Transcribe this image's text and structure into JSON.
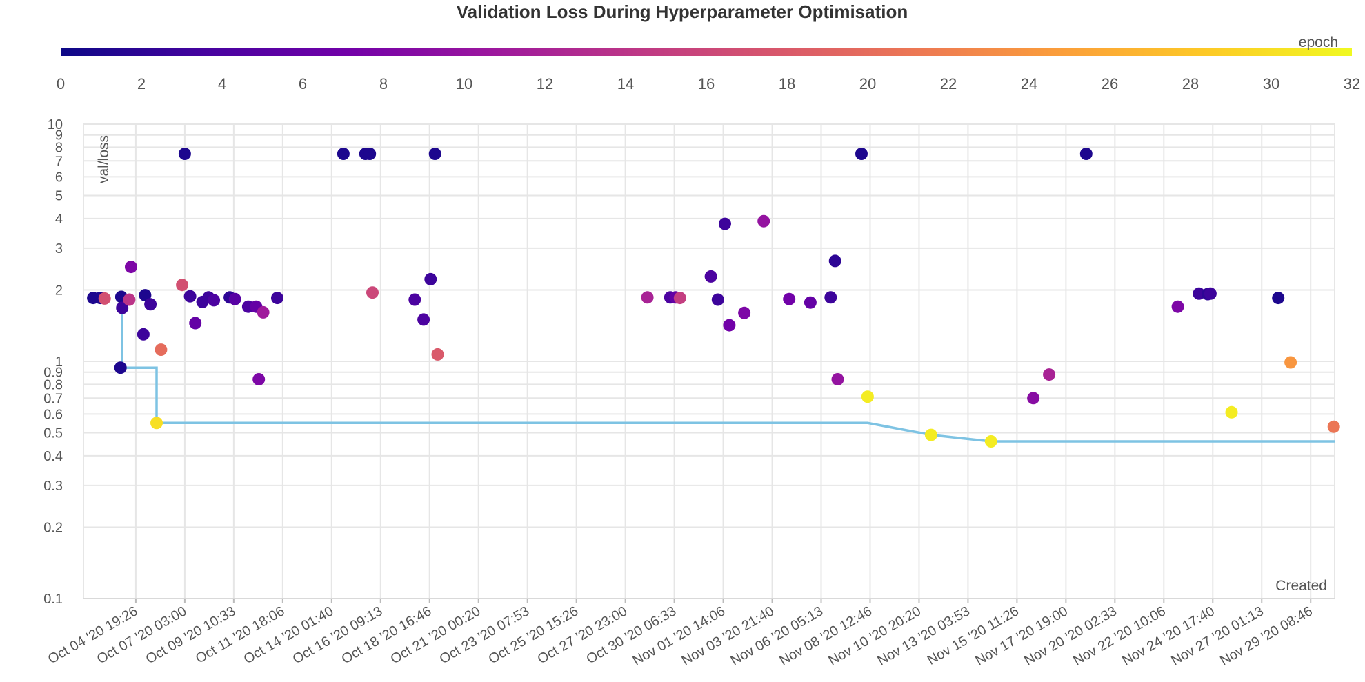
{
  "chart_data": {
    "type": "scatter",
    "title": "Validation Loss During Hyperparameter Optimisation",
    "xlabel": "Created",
    "ylabel": "val/loss",
    "y_scale": "log",
    "ylim": [
      0.1,
      10
    ],
    "y_ticks": [
      {
        "value": 0.1,
        "label": "0.1"
      },
      {
        "value": 0.2,
        "label": "0.2"
      },
      {
        "value": 0.3,
        "label": "0.3"
      },
      {
        "value": 0.4,
        "label": "0.4"
      },
      {
        "value": 0.5,
        "label": "0.5"
      },
      {
        "value": 0.6,
        "label": "0.6"
      },
      {
        "value": 0.7,
        "label": "0.7"
      },
      {
        "value": 0.8,
        "label": "0.8"
      },
      {
        "value": 0.9,
        "label": "0.9"
      },
      {
        "value": 1,
        "label": "1"
      },
      {
        "value": 2,
        "label": "2"
      },
      {
        "value": 3,
        "label": "3"
      },
      {
        "value": 4,
        "label": "4"
      },
      {
        "value": 5,
        "label": "5"
      },
      {
        "value": 6,
        "label": "6"
      },
      {
        "value": 7,
        "label": "7"
      },
      {
        "value": 8,
        "label": "8"
      },
      {
        "value": 9,
        "label": "9"
      },
      {
        "value": 10,
        "label": "10"
      }
    ],
    "xlim": [
      "2020-10-02 08:00",
      "2020-11-30 12:00"
    ],
    "x_ticks": [
      {
        "value": "2020-10-04 19:26",
        "label": "Oct 04 '20 19:26"
      },
      {
        "value": "2020-10-07 03:00",
        "label": "Oct 07 '20 03:00"
      },
      {
        "value": "2020-10-09 10:33",
        "label": "Oct 09 '20 10:33"
      },
      {
        "value": "2020-10-11 18:06",
        "label": "Oct 11 '20 18:06"
      },
      {
        "value": "2020-10-14 01:40",
        "label": "Oct 14 '20 01:40"
      },
      {
        "value": "2020-10-16 09:13",
        "label": "Oct 16 '20 09:13"
      },
      {
        "value": "2020-10-18 16:46",
        "label": "Oct 18 '20 16:46"
      },
      {
        "value": "2020-10-21 00:20",
        "label": "Oct 21 '20 00:20"
      },
      {
        "value": "2020-10-23 07:53",
        "label": "Oct 23 '20 07:53"
      },
      {
        "value": "2020-10-25 15:26",
        "label": "Oct 25 '20 15:26"
      },
      {
        "value": "2020-10-27 23:00",
        "label": "Oct 27 '20 23:00"
      },
      {
        "value": "2020-10-30 06:33",
        "label": "Oct 30 '20 06:33"
      },
      {
        "value": "2020-11-01 14:06",
        "label": "Nov 01 '20 14:06"
      },
      {
        "value": "2020-11-03 21:40",
        "label": "Nov 03 '20 21:40"
      },
      {
        "value": "2020-11-06 05:13",
        "label": "Nov 06 '20 05:13"
      },
      {
        "value": "2020-11-08 12:46",
        "label": "Nov 08 '20 12:46"
      },
      {
        "value": "2020-11-10 20:20",
        "label": "Nov 10 '20 20:20"
      },
      {
        "value": "2020-11-13 03:53",
        "label": "Nov 13 '20 03:53"
      },
      {
        "value": "2020-11-15 11:26",
        "label": "Nov 15 '20 11:26"
      },
      {
        "value": "2020-11-17 19:00",
        "label": "Nov 17 '20 19:00"
      },
      {
        "value": "2020-11-20 02:33",
        "label": "Nov 20 '20 02:33"
      },
      {
        "value": "2020-11-22 10:06",
        "label": "Nov 22 '20 10:06"
      },
      {
        "value": "2020-11-24 17:40",
        "label": "Nov 24 '20 17:40"
      },
      {
        "value": "2020-11-27 01:13",
        "label": "Nov 27 '20 01:13"
      },
      {
        "value": "2020-11-29 08:46",
        "label": "Nov 29 '20 08:46"
      }
    ],
    "grid": true,
    "colorbar": {
      "label": "epoch",
      "range": [
        0,
        32
      ],
      "ticks": [
        0,
        2,
        4,
        6,
        8,
        10,
        12,
        14,
        16,
        18,
        20,
        22,
        24,
        26,
        28,
        30,
        32
      ],
      "colorscale": [
        "#0d0887",
        "#46039f",
        "#7201a8",
        "#9c179e",
        "#bd3786",
        "#d8576b",
        "#ed7953",
        "#fb9f3a",
        "#fdca26",
        "#f0f921"
      ],
      "placement": "top"
    },
    "series": [
      {
        "type": "scatter",
        "points": [
          {
            "x": "2020-10-02 19:00",
            "y": 1.85,
            "epoch": 1
          },
          {
            "x": "2020-10-03 03:00",
            "y": 1.85,
            "epoch": 1
          },
          {
            "x": "2020-10-03 08:00",
            "y": 1.84,
            "epoch": 17
          },
          {
            "x": "2020-10-04 03:00",
            "y": 1.87,
            "epoch": 1
          },
          {
            "x": "2020-10-04 04:00",
            "y": 1.68,
            "epoch": 3
          },
          {
            "x": "2020-10-04 02:00",
            "y": 0.94,
            "epoch": 1
          },
          {
            "x": "2020-10-04 12:00",
            "y": 1.82,
            "epoch": 14
          },
          {
            "x": "2020-10-04 14:00",
            "y": 2.5,
            "epoch": 8
          },
          {
            "x": "2020-10-05 06:00",
            "y": 1.9,
            "epoch": 1
          },
          {
            "x": "2020-10-05 04:00",
            "y": 1.3,
            "epoch": 3
          },
          {
            "x": "2020-10-05 12:00",
            "y": 1.74,
            "epoch": 3
          },
          {
            "x": "2020-10-06 00:00",
            "y": 1.12,
            "epoch": 20
          },
          {
            "x": "2020-10-05 19:00",
            "y": 0.55,
            "epoch": 30
          },
          {
            "x": "2020-10-07 03:00",
            "y": 7.5,
            "epoch": 1
          },
          {
            "x": "2020-10-07 00:00",
            "y": 2.1,
            "epoch": 17
          },
          {
            "x": "2020-10-07 09:00",
            "y": 1.88,
            "epoch": 3
          },
          {
            "x": "2020-10-07 15:00",
            "y": 1.45,
            "epoch": 6
          },
          {
            "x": "2020-10-07 23:00",
            "y": 1.78,
            "epoch": 3
          },
          {
            "x": "2020-10-08 06:00",
            "y": 1.86,
            "epoch": 3
          },
          {
            "x": "2020-10-08 12:00",
            "y": 1.81,
            "epoch": 4
          },
          {
            "x": "2020-10-09 06:00",
            "y": 1.86,
            "epoch": 2
          },
          {
            "x": "2020-10-09 12:00",
            "y": 1.83,
            "epoch": 5
          },
          {
            "x": "2020-10-10 03:00",
            "y": 1.7,
            "epoch": 4
          },
          {
            "x": "2020-10-10 12:00",
            "y": 1.7,
            "epoch": 6
          },
          {
            "x": "2020-10-10 15:00",
            "y": 0.84,
            "epoch": 8
          },
          {
            "x": "2020-10-10 20:00",
            "y": 1.61,
            "epoch": 11
          },
          {
            "x": "2020-10-11 12:00",
            "y": 1.85,
            "epoch": 3
          },
          {
            "x": "2020-10-14 15:00",
            "y": 7.5,
            "epoch": 1
          },
          {
            "x": "2020-10-15 16:00",
            "y": 7.5,
            "epoch": 1
          },
          {
            "x": "2020-10-15 21:00",
            "y": 7.5,
            "epoch": 1
          },
          {
            "x": "2020-10-16 00:00",
            "y": 1.95,
            "epoch": 16
          },
          {
            "x": "2020-10-18 00:00",
            "y": 1.82,
            "epoch": 4
          },
          {
            "x": "2020-10-18 10:00",
            "y": 1.5,
            "epoch": 4
          },
          {
            "x": "2020-10-18 18:00",
            "y": 2.22,
            "epoch": 3
          },
          {
            "x": "2020-10-18 23:00",
            "y": 7.5,
            "epoch": 1
          },
          {
            "x": "2020-10-19 02:00",
            "y": 1.07,
            "epoch": 18
          },
          {
            "x": "2020-10-29 00:00",
            "y": 1.86,
            "epoch": 12
          },
          {
            "x": "2020-10-30 02:00",
            "y": 1.86,
            "epoch": 4
          },
          {
            "x": "2020-10-30 08:00",
            "y": 1.86,
            "epoch": 6
          },
          {
            "x": "2020-10-30 13:00",
            "y": 1.85,
            "epoch": 15
          },
          {
            "x": "2020-11-01 00:00",
            "y": 2.28,
            "epoch": 4
          },
          {
            "x": "2020-11-01 08:00",
            "y": 1.82,
            "epoch": 3
          },
          {
            "x": "2020-11-01 16:00",
            "y": 3.8,
            "epoch": 3
          },
          {
            "x": "2020-11-01 21:00",
            "y": 1.42,
            "epoch": 7
          },
          {
            "x": "2020-11-02 14:00",
            "y": 1.6,
            "epoch": 8
          },
          {
            "x": "2020-11-03 12:00",
            "y": 3.9,
            "epoch": 10
          },
          {
            "x": "2020-11-04 17:00",
            "y": 1.83,
            "epoch": 7
          },
          {
            "x": "2020-11-05 17:00",
            "y": 1.77,
            "epoch": 6
          },
          {
            "x": "2020-11-06 16:00",
            "y": 1.86,
            "epoch": 3
          },
          {
            "x": "2020-11-06 21:00",
            "y": 2.65,
            "epoch": 2
          },
          {
            "x": "2020-11-07 00:00",
            "y": 0.84,
            "epoch": 10
          },
          {
            "x": "2020-11-08 03:00",
            "y": 7.5,
            "epoch": 1
          },
          {
            "x": "2020-11-08 10:00",
            "y": 0.71,
            "epoch": 31
          },
          {
            "x": "2020-11-11 10:00",
            "y": 0.49,
            "epoch": 31
          },
          {
            "x": "2020-11-14 06:00",
            "y": 0.46,
            "epoch": 31
          },
          {
            "x": "2020-11-16 06:00",
            "y": 0.7,
            "epoch": 9
          },
          {
            "x": "2020-11-17 00:00",
            "y": 0.88,
            "epoch": 12
          },
          {
            "x": "2020-11-18 18:00",
            "y": 7.5,
            "epoch": 1
          },
          {
            "x": "2020-11-23 02:00",
            "y": 1.7,
            "epoch": 8
          },
          {
            "x": "2020-11-24 02:00",
            "y": 1.93,
            "epoch": 3
          },
          {
            "x": "2020-11-24 12:00",
            "y": 1.92,
            "epoch": 2
          },
          {
            "x": "2020-11-24 15:00",
            "y": 1.93,
            "epoch": 3
          },
          {
            "x": "2020-11-27 20:00",
            "y": 1.85,
            "epoch": 1
          },
          {
            "x": "2020-11-28 10:00",
            "y": 0.99,
            "epoch": 24
          },
          {
            "x": "2020-11-25 15:00",
            "y": 0.61,
            "epoch": 31
          },
          {
            "x": "2020-11-30 11:00",
            "y": 0.53,
            "epoch": 21
          }
        ]
      },
      {
        "type": "line",
        "shape": "step",
        "color": "#7ec3e3",
        "points": [
          {
            "x": "2020-10-04 04:00",
            "y": 1.68
          },
          {
            "x": "2020-10-04 04:00",
            "y": 0.94
          },
          {
            "x": "2020-10-05 19:00",
            "y": 0.94
          },
          {
            "x": "2020-10-05 19:00",
            "y": 0.55
          },
          {
            "x": "2020-11-08 10:00",
            "y": 0.55
          },
          {
            "x": "2020-11-11 10:00",
            "y": 0.49
          },
          {
            "x": "2020-11-14 06:00",
            "y": 0.46
          },
          {
            "x": "2020-11-30 12:00",
            "y": 0.46
          }
        ]
      }
    ]
  }
}
